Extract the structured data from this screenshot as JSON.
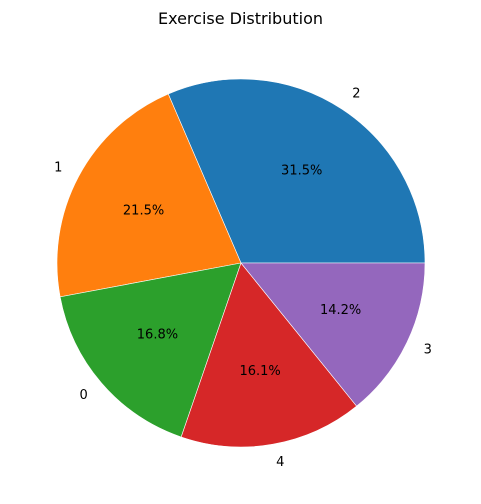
{
  "chart_data": {
    "type": "pie",
    "title": "Exercise Distribution",
    "labels": [
      "2",
      "1",
      "0",
      "4",
      "3"
    ],
    "values": [
      31.5,
      21.5,
      16.8,
      16.1,
      14.2
    ],
    "percent_labels": [
      "31.5%",
      "21.5%",
      "16.8%",
      "16.1%",
      "14.2%"
    ],
    "colors": [
      "#1f77b4",
      "#ff7f0e",
      "#2ca02c",
      "#d62728",
      "#9467bd"
    ],
    "start_angle_deg": 0,
    "direction": "counterclockwise",
    "legend": "none"
  }
}
